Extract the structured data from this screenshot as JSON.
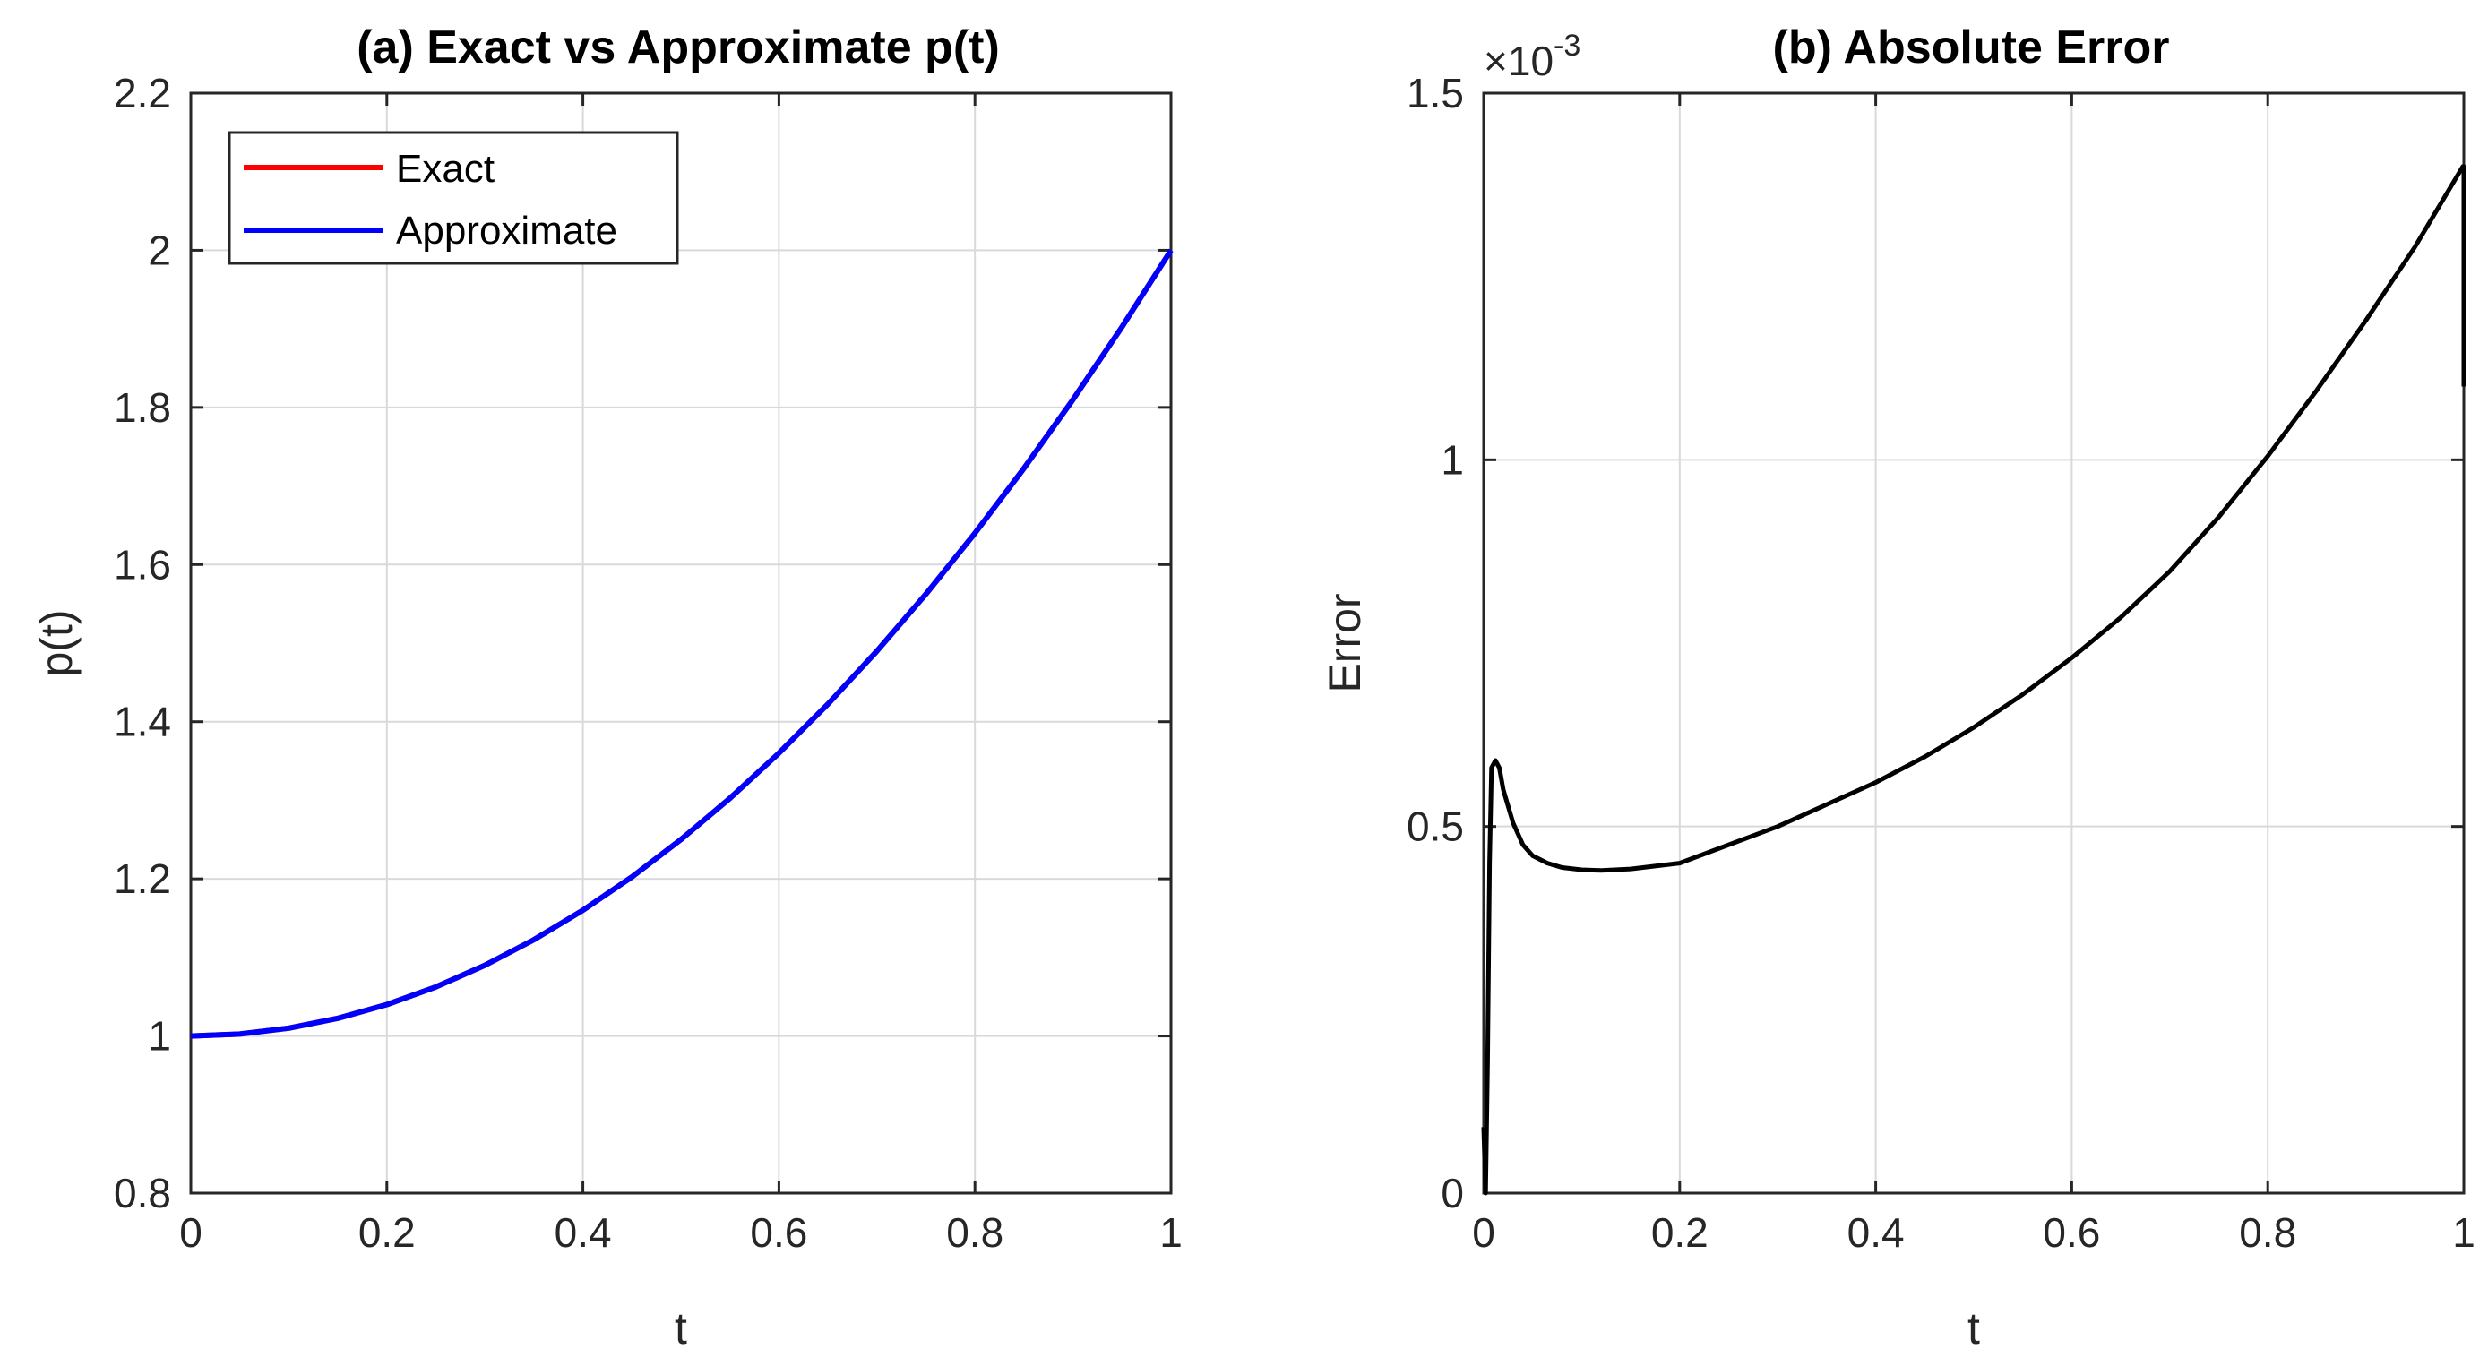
{
  "chart_data": [
    {
      "id": "a",
      "type": "line",
      "title": "(a) Exact vs Approximate p(t)",
      "xlabel": "t",
      "ylabel": "p(t)",
      "xlim": [
        0,
        1
      ],
      "ylim": [
        0.8,
        2.2
      ],
      "xticks": [
        0,
        0.2,
        0.4,
        0.6,
        0.8,
        1
      ],
      "xtick_labels": [
        "0",
        "0.2",
        "0.4",
        "0.6",
        "0.8",
        "1"
      ],
      "yticks": [
        0.8,
        1,
        1.2,
        1.4,
        1.6,
        1.8,
        2,
        2.2
      ],
      "ytick_labels": [
        "0.8",
        "1",
        "1.2",
        "1.4",
        "1.6",
        "1.8",
        "2",
        "2.2"
      ],
      "grid": true,
      "legend": "top-left",
      "series": [
        {
          "name": "Exact",
          "color": "#ff0000",
          "x": [
            0,
            0.05,
            0.1,
            0.15,
            0.2,
            0.25,
            0.3,
            0.35,
            0.4,
            0.45,
            0.5,
            0.55,
            0.6,
            0.65,
            0.7,
            0.75,
            0.8,
            0.85,
            0.9,
            0.95,
            1
          ],
          "y": [
            1.0,
            1.0025,
            1.01,
            1.0225,
            1.04,
            1.0625,
            1.09,
            1.1225,
            1.16,
            1.2025,
            1.25,
            1.3025,
            1.36,
            1.4225,
            1.49,
            1.5625,
            1.64,
            1.7225,
            1.81,
            1.9025,
            2.0
          ]
        },
        {
          "name": "Approximate",
          "color": "#0000ff",
          "x": [
            0,
            0.05,
            0.1,
            0.15,
            0.2,
            0.25,
            0.3,
            0.35,
            0.4,
            0.45,
            0.5,
            0.55,
            0.6,
            0.65,
            0.7,
            0.75,
            0.8,
            0.85,
            0.9,
            0.95,
            1
          ],
          "y": [
            1.0,
            1.0025,
            1.01,
            1.0225,
            1.04,
            1.0625,
            1.09,
            1.1225,
            1.16,
            1.2025,
            1.25,
            1.3025,
            1.36,
            1.4225,
            1.49,
            1.5625,
            1.64,
            1.7225,
            1.81,
            1.9025,
            2.0
          ]
        }
      ]
    },
    {
      "id": "b",
      "type": "line",
      "title": "(b) Absolute Error",
      "xlabel": "t",
      "ylabel": "Error",
      "scale_base": "×10",
      "scale_exponent": "-3",
      "xlim": [
        0,
        1
      ],
      "ylim": [
        0,
        0.0015
      ],
      "xticks": [
        0,
        0.2,
        0.4,
        0.6,
        0.8,
        1
      ],
      "xtick_labels": [
        "0",
        "0.2",
        "0.4",
        "0.6",
        "0.8",
        "1"
      ],
      "yticks": [
        0,
        0.0005,
        0.001,
        0.0015
      ],
      "ytick_labels": [
        "0",
        "0.5",
        "1",
        "1.5"
      ],
      "grid": true,
      "series": [
        {
          "name": "Error",
          "color": "#000000",
          "x": [
            0,
            0.002,
            0.004,
            0.006,
            0.008,
            0.012,
            0.016,
            0.02,
            0.03,
            0.04,
            0.05,
            0.065,
            0.08,
            0.1,
            0.12,
            0.15,
            0.2,
            0.25,
            0.3,
            0.35,
            0.4,
            0.45,
            0.5,
            0.55,
            0.6,
            0.65,
            0.7,
            0.75,
            0.8,
            0.85,
            0.9,
            0.95,
            0.999,
            1.0,
            1.0
          ],
          "y": [
            9e-05,
            0.0,
            0.00018,
            0.00045,
            0.00058,
            0.00059,
            0.00058,
            0.00055,
            0.000505,
            0.000475,
            0.00046,
            0.00045,
            0.000444,
            0.000441,
            0.00044,
            0.000442,
            0.00045,
            0.000475,
            0.0005,
            0.00053,
            0.00056,
            0.000595,
            0.000635,
            0.00068,
            0.00073,
            0.000785,
            0.000848,
            0.000922,
            0.001005,
            0.001095,
            0.00119,
            0.00129,
            0.0014,
            0.0014,
            0.0011
          ]
        }
      ]
    }
  ]
}
